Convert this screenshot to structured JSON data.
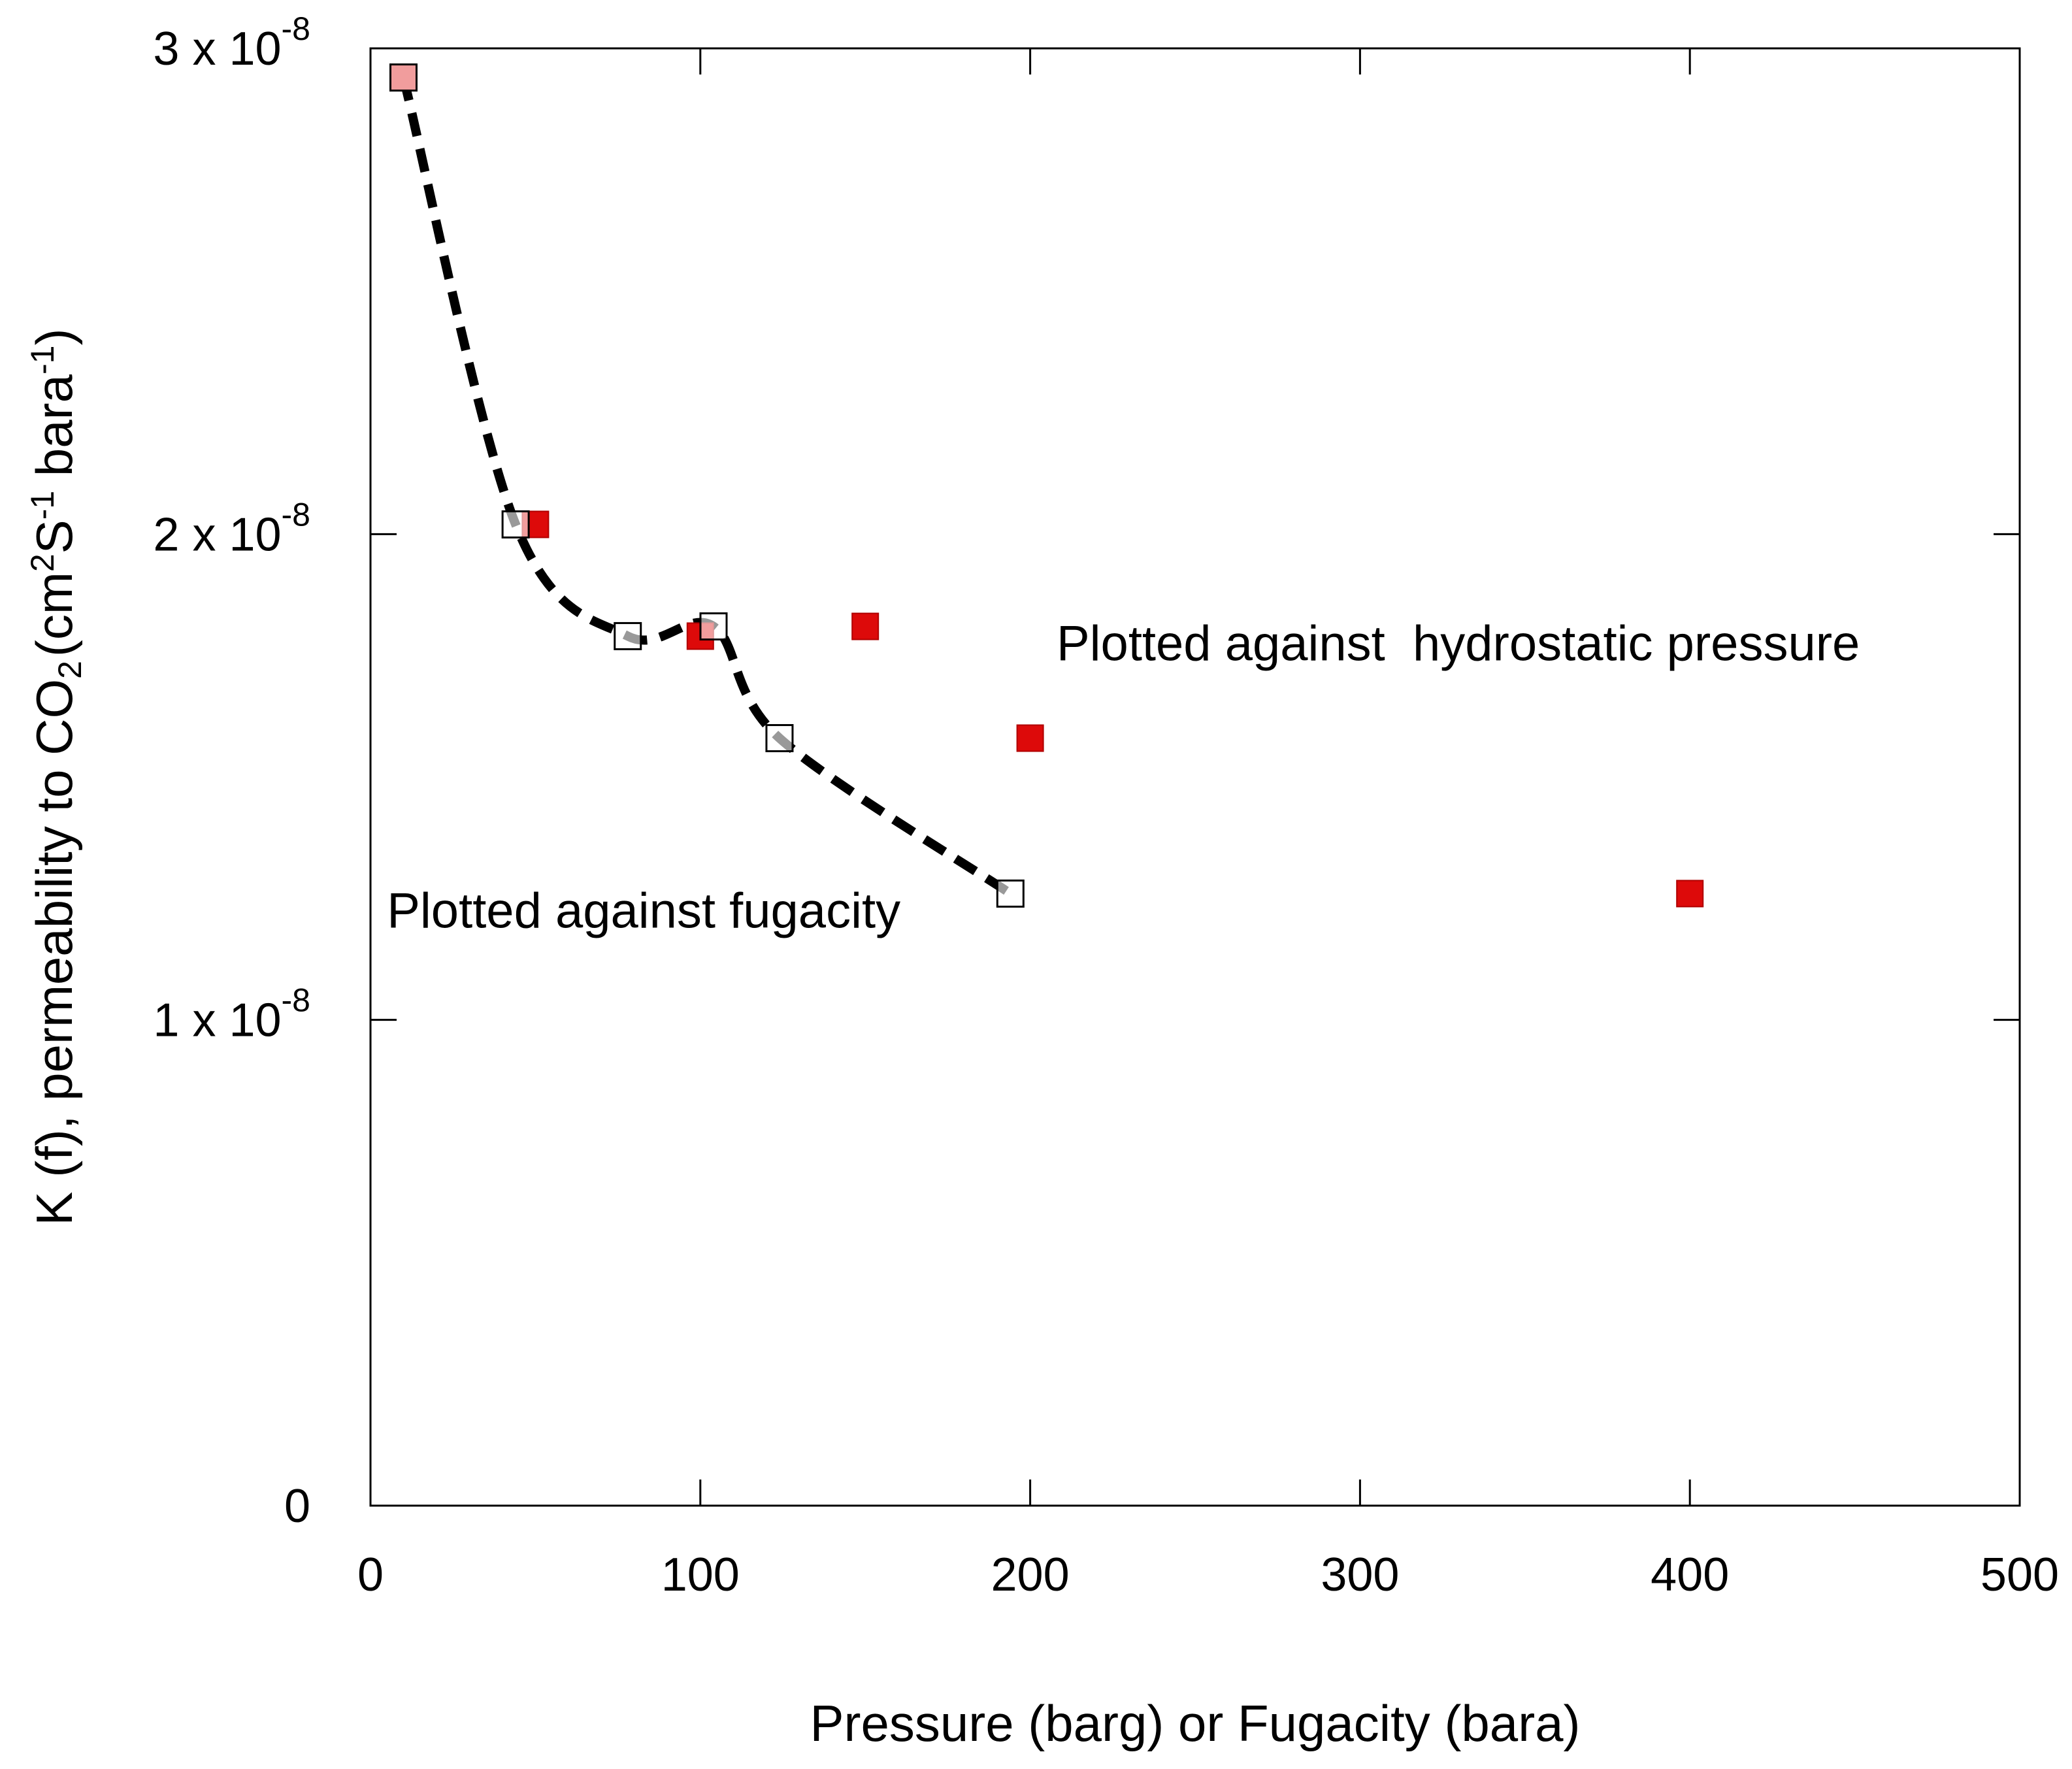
{
  "chart_data": {
    "type": "scatter",
    "title": "",
    "xlabel": "Pressure (barg) or Fugacity (bara)",
    "ylabel": {
      "p1": "K (f), permeability to CO",
      "sub": "2",
      "p2": "(cm",
      "sup1": "2",
      "p3": "S",
      "sup2": "-1",
      "p4": " bara",
      "sup3": "-1",
      "p5": ")"
    },
    "xlim": [
      0,
      500
    ],
    "ylim": [
      0,
      3e-08
    ],
    "x_ticks": [
      {
        "value": 0,
        "label": "0"
      },
      {
        "value": 100,
        "label": "100"
      },
      {
        "value": 200,
        "label": "200"
      },
      {
        "value": 300,
        "label": "300"
      },
      {
        "value": 400,
        "label": "400"
      },
      {
        "value": 500,
        "label": "500"
      }
    ],
    "y_ticks": [
      {
        "value": 0,
        "label": "0",
        "exp": ""
      },
      {
        "value": 1e-08,
        "label": "1 x 10",
        "exp": "-8"
      },
      {
        "value": 2e-08,
        "label": "2 x 10",
        "exp": "-8"
      },
      {
        "value": 3e-08,
        "label": "3 x 10",
        "exp": "-8"
      }
    ],
    "grid": false,
    "series": [
      {
        "name": "Plotted against hydrostatic pressure",
        "marker": "filled-square",
        "color": "#dd0a0a",
        "line": false,
        "x": [
          10,
          50,
          100,
          150,
          200,
          400
        ],
        "y": [
          2.94e-08,
          2.02e-08,
          1.79e-08,
          1.81e-08,
          1.58e-08,
          1.26e-08
        ]
      },
      {
        "name": "Plotted against fugacity",
        "marker": "open-square",
        "color": "#000000",
        "line": "dashed",
        "x": [
          10,
          44,
          78,
          104,
          124,
          194
        ],
        "y": [
          2.94e-08,
          2.02e-08,
          1.79e-08,
          1.81e-08,
          1.58e-08,
          1.26e-08
        ]
      }
    ],
    "annotations": [
      {
        "text": "Plotted against  hydrostatic pressure",
        "x": 208,
        "y": 1.74e-08
      },
      {
        "text": "Plotted against fugacity",
        "x": 5,
        "y": 1.19e-08
      }
    ]
  }
}
